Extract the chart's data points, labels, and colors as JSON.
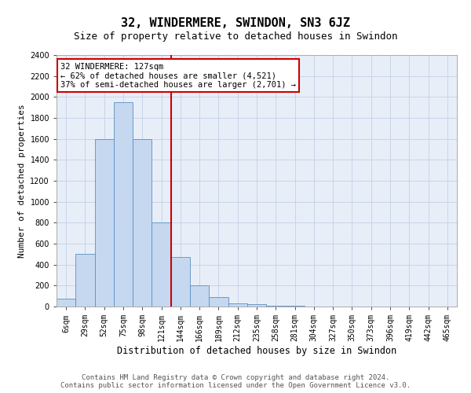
{
  "title": "32, WINDERMERE, SWINDON, SN3 6JZ",
  "subtitle": "Size of property relative to detached houses in Swindon",
  "xlabel": "Distribution of detached houses by size in Swindon",
  "ylabel": "Number of detached properties",
  "categories": [
    "6sqm",
    "29sqm",
    "52sqm",
    "75sqm",
    "98sqm",
    "121sqm",
    "144sqm",
    "166sqm",
    "189sqm",
    "212sqm",
    "235sqm",
    "258sqm",
    "281sqm",
    "304sqm",
    "327sqm",
    "350sqm",
    "373sqm",
    "396sqm",
    "419sqm",
    "442sqm",
    "465sqm"
  ],
  "values": [
    75,
    500,
    1600,
    1950,
    1600,
    800,
    475,
    200,
    90,
    30,
    20,
    5,
    5,
    0,
    0,
    0,
    0,
    0,
    0,
    0,
    0
  ],
  "bar_color": "#c5d8f0",
  "bar_edge_color": "#5a8fc2",
  "vline_color": "#cc0000",
  "vline_x": 5.5,
  "annotation_text": "32 WINDERMERE: 127sqm\n← 62% of detached houses are smaller (4,521)\n37% of semi-detached houses are larger (2,701) →",
  "annotation_box_facecolor": "#ffffff",
  "annotation_box_edgecolor": "#cc0000",
  "ylim": [
    0,
    2400
  ],
  "yticks": [
    0,
    200,
    400,
    600,
    800,
    1000,
    1200,
    1400,
    1600,
    1800,
    2000,
    2200,
    2400
  ],
  "grid_color": "#c8d4e8",
  "background_color": "#e8eef8",
  "footer_line1": "Contains HM Land Registry data © Crown copyright and database right 2024.",
  "footer_line2": "Contains public sector information licensed under the Open Government Licence v3.0.",
  "title_fontsize": 11,
  "subtitle_fontsize": 9,
  "xlabel_fontsize": 8.5,
  "ylabel_fontsize": 8,
  "tick_fontsize": 7,
  "annotation_fontsize": 7.5,
  "footer_fontsize": 6.5
}
